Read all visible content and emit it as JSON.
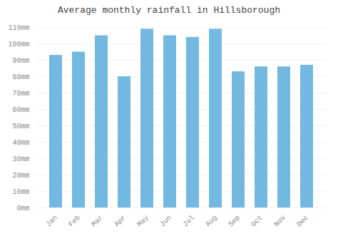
{
  "chart_data": {
    "type": "bar",
    "title": "Average monthly rainfall in Hillsborough",
    "categories": [
      "Jan",
      "Feb",
      "Mar",
      "Apr",
      "May",
      "Jun",
      "Jul",
      "Aug",
      "Sep",
      "Oct",
      "Nov",
      "Dec"
    ],
    "values": [
      93,
      95,
      105,
      80,
      109,
      105,
      104,
      109,
      83,
      86,
      86,
      87
    ],
    "color": "#72b8e0",
    "ylim": [
      0,
      110
    ],
    "yticks": [
      {
        "value": 0,
        "label": "0mm"
      },
      {
        "value": 10,
        "label": "10mm"
      },
      {
        "value": 20,
        "label": "20mm"
      },
      {
        "value": 30,
        "label": "30mm"
      },
      {
        "value": 40,
        "label": "40mm"
      },
      {
        "value": 50,
        "label": "50mm"
      },
      {
        "value": 60,
        "label": "60mm"
      },
      {
        "value": 70,
        "label": "70mm"
      },
      {
        "value": 80,
        "label": "80mm"
      },
      {
        "value": 90,
        "label": "90mm"
      },
      {
        "value": 100,
        "label": "100mm"
      },
      {
        "value": 110,
        "label": "110mm"
      }
    ],
    "grid": true
  }
}
